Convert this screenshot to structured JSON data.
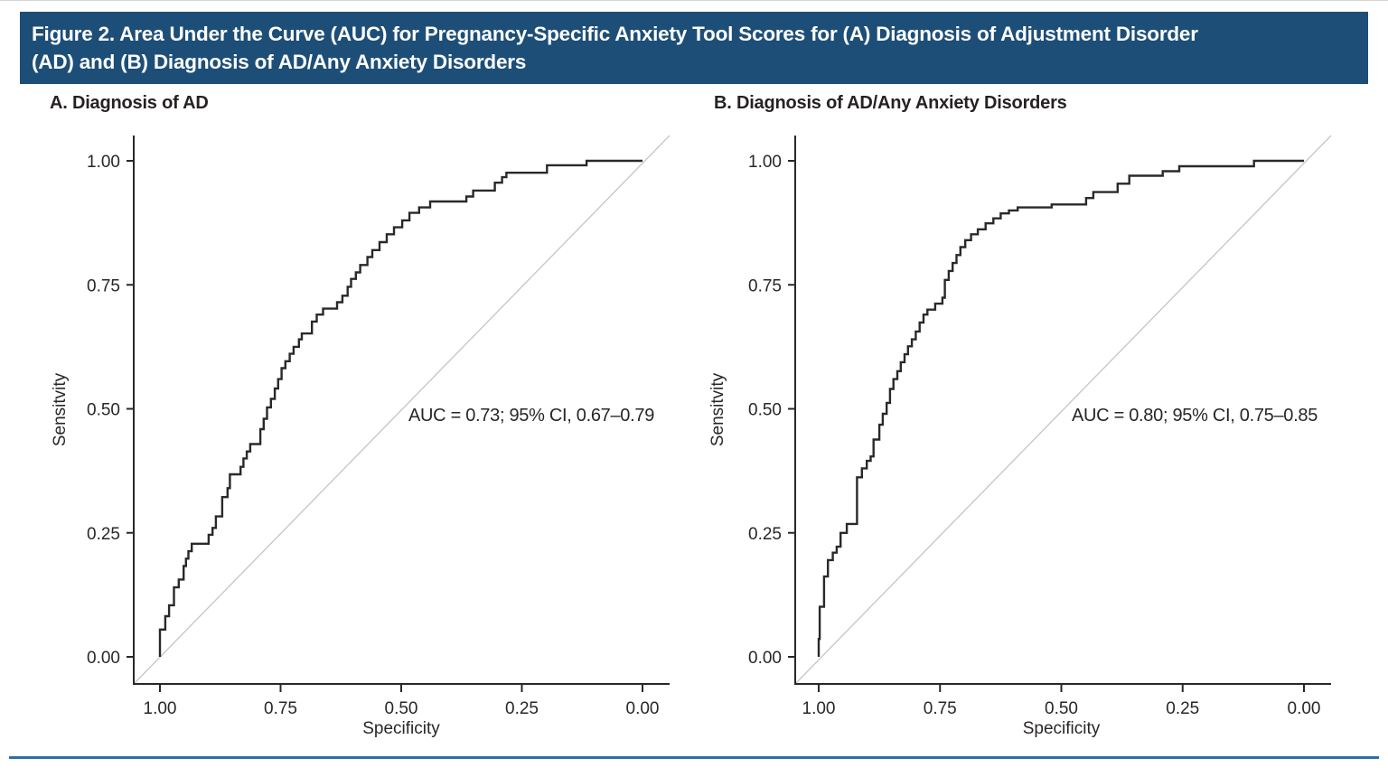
{
  "header": {
    "lines": [
      "Figure 2. Area Under the Curve (AUC) for Pregnancy-Specific Anxiety Tool Scores for (A) Diagnosis of Adjustment Disorder",
      "(AD) and (B) Diagnosis of AD/Any Anxiety Disorders"
    ],
    "full_title": "Figure 2. Area Under the Curve (AUC) for Pregnancy-Specific Anxiety Tool Scores for (A) Diagnosis of Adjustment Disorder (AD) and (B) Diagnosis of AD/Any Anxiety Disorders"
  },
  "palette": {
    "header_bg": "#1d4e77",
    "header_text": "#ffffff",
    "curve": "#2b2829",
    "axis": "#2b2728",
    "tick_text": "#2a2627",
    "reference_line": "#c8c8cc",
    "bottom_rule": "#2e6ea6"
  },
  "chart_data": [
    {
      "id": "panel-a",
      "type": "line",
      "subtype": "roc_step_curve",
      "title": "A. Diagnosis of AD",
      "xlabel": "Specificity",
      "ylabel": "Sensitvity",
      "x_axis_reversed": true,
      "xlim": [
        1.0,
        0.0
      ],
      "ylim": [
        0.0,
        1.0
      ],
      "x_tick_labels": [
        "1.00",
        "0.75",
        "0.50",
        "0.25",
        "0.00"
      ],
      "y_tick_labels": [
        "0.00",
        "0.25",
        "0.50",
        "0.75",
        "1.00"
      ],
      "grid": false,
      "legend": "none",
      "reference_line": "diagonal chance line",
      "annotation": "AUC = 0.73; 95% CI, 0.67–0.79",
      "auc": 0.73,
      "ci_low": 0.67,
      "ci_high": 0.79,
      "roc_points": [
        [
          1.0,
          0.0
        ],
        [
          1.0,
          0.055
        ],
        [
          0.989,
          0.055
        ],
        [
          0.989,
          0.082
        ],
        [
          0.981,
          0.082
        ],
        [
          0.981,
          0.104
        ],
        [
          0.971,
          0.104
        ],
        [
          0.971,
          0.14
        ],
        [
          0.961,
          0.14
        ],
        [
          0.961,
          0.156
        ],
        [
          0.951,
          0.156
        ],
        [
          0.951,
          0.183
        ],
        [
          0.946,
          0.183
        ],
        [
          0.946,
          0.198
        ],
        [
          0.941,
          0.198
        ],
        [
          0.941,
          0.213
        ],
        [
          0.934,
          0.213
        ],
        [
          0.934,
          0.228
        ],
        [
          0.899,
          0.228
        ],
        [
          0.899,
          0.246
        ],
        [
          0.891,
          0.246
        ],
        [
          0.891,
          0.26
        ],
        [
          0.884,
          0.26
        ],
        [
          0.884,
          0.283
        ],
        [
          0.871,
          0.283
        ],
        [
          0.871,
          0.322
        ],
        [
          0.86,
          0.322
        ],
        [
          0.86,
          0.34
        ],
        [
          0.855,
          0.34
        ],
        [
          0.855,
          0.368
        ],
        [
          0.833,
          0.368
        ],
        [
          0.833,
          0.383
        ],
        [
          0.827,
          0.383
        ],
        [
          0.827,
          0.4
        ],
        [
          0.82,
          0.4
        ],
        [
          0.82,
          0.414
        ],
        [
          0.813,
          0.414
        ],
        [
          0.813,
          0.429
        ],
        [
          0.792,
          0.429
        ],
        [
          0.792,
          0.459
        ],
        [
          0.785,
          0.459
        ],
        [
          0.785,
          0.48
        ],
        [
          0.778,
          0.48
        ],
        [
          0.778,
          0.503
        ],
        [
          0.77,
          0.503
        ],
        [
          0.77,
          0.52
        ],
        [
          0.762,
          0.52
        ],
        [
          0.762,
          0.541
        ],
        [
          0.755,
          0.541
        ],
        [
          0.755,
          0.56
        ],
        [
          0.748,
          0.56
        ],
        [
          0.748,
          0.582
        ],
        [
          0.74,
          0.582
        ],
        [
          0.74,
          0.596
        ],
        [
          0.731,
          0.596
        ],
        [
          0.731,
          0.611
        ],
        [
          0.723,
          0.611
        ],
        [
          0.723,
          0.625
        ],
        [
          0.712,
          0.625
        ],
        [
          0.712,
          0.64
        ],
        [
          0.706,
          0.64
        ],
        [
          0.706,
          0.652
        ],
        [
          0.685,
          0.652
        ],
        [
          0.685,
          0.676
        ],
        [
          0.675,
          0.676
        ],
        [
          0.675,
          0.69
        ],
        [
          0.662,
          0.69
        ],
        [
          0.662,
          0.702
        ],
        [
          0.633,
          0.702
        ],
        [
          0.633,
          0.715
        ],
        [
          0.622,
          0.715
        ],
        [
          0.622,
          0.728
        ],
        [
          0.611,
          0.728
        ],
        [
          0.611,
          0.746
        ],
        [
          0.604,
          0.746
        ],
        [
          0.604,
          0.762
        ],
        [
          0.594,
          0.762
        ],
        [
          0.594,
          0.775
        ],
        [
          0.585,
          0.775
        ],
        [
          0.585,
          0.79
        ],
        [
          0.57,
          0.79
        ],
        [
          0.57,
          0.806
        ],
        [
          0.56,
          0.806
        ],
        [
          0.56,
          0.82
        ],
        [
          0.545,
          0.82
        ],
        [
          0.545,
          0.836
        ],
        [
          0.53,
          0.836
        ],
        [
          0.53,
          0.852
        ],
        [
          0.515,
          0.852
        ],
        [
          0.515,
          0.866
        ],
        [
          0.498,
          0.866
        ],
        [
          0.498,
          0.88
        ],
        [
          0.483,
          0.88
        ],
        [
          0.483,
          0.895
        ],
        [
          0.463,
          0.895
        ],
        [
          0.463,
          0.906
        ],
        [
          0.44,
          0.906
        ],
        [
          0.44,
          0.918
        ],
        [
          0.365,
          0.918
        ],
        [
          0.365,
          0.928
        ],
        [
          0.351,
          0.928
        ],
        [
          0.351,
          0.94
        ],
        [
          0.306,
          0.94
        ],
        [
          0.306,
          0.956
        ],
        [
          0.291,
          0.956
        ],
        [
          0.291,
          0.967
        ],
        [
          0.282,
          0.967
        ],
        [
          0.282,
          0.976
        ],
        [
          0.198,
          0.976
        ],
        [
          0.198,
          0.991
        ],
        [
          0.116,
          0.991
        ],
        [
          0.116,
          1.0
        ],
        [
          0.0,
          1.0
        ]
      ]
    },
    {
      "id": "panel-b",
      "type": "line",
      "subtype": "roc_step_curve",
      "title": "B. Diagnosis of AD/Any Anxiety Disorders",
      "xlabel": "Specificity",
      "ylabel": "Sensitvity",
      "x_axis_reversed": true,
      "xlim": [
        1.0,
        0.0
      ],
      "ylim": [
        0.0,
        1.0
      ],
      "x_tick_labels": [
        "1.00",
        "0.75",
        "0.50",
        "0.25",
        "0.00"
      ],
      "y_tick_labels": [
        "0.00",
        "0.25",
        "0.50",
        "0.75",
        "1.00"
      ],
      "grid": false,
      "legend": "none",
      "reference_line": "diagonal chance line",
      "annotation": "AUC = 0.80; 95% CI, 0.75–0.85",
      "auc": 0.8,
      "ci_low": 0.75,
      "ci_high": 0.85,
      "roc_points": [
        [
          1.0,
          0.0
        ],
        [
          1.0,
          0.036
        ],
        [
          0.998,
          0.036
        ],
        [
          0.998,
          0.101
        ],
        [
          0.989,
          0.101
        ],
        [
          0.989,
          0.162
        ],
        [
          0.981,
          0.162
        ],
        [
          0.981,
          0.195
        ],
        [
          0.971,
          0.195
        ],
        [
          0.971,
          0.21
        ],
        [
          0.963,
          0.21
        ],
        [
          0.963,
          0.222
        ],
        [
          0.955,
          0.222
        ],
        [
          0.955,
          0.25
        ],
        [
          0.942,
          0.25
        ],
        [
          0.942,
          0.268
        ],
        [
          0.921,
          0.268
        ],
        [
          0.921,
          0.362
        ],
        [
          0.911,
          0.362
        ],
        [
          0.911,
          0.38
        ],
        [
          0.901,
          0.38
        ],
        [
          0.901,
          0.395
        ],
        [
          0.893,
          0.395
        ],
        [
          0.893,
          0.404
        ],
        [
          0.887,
          0.404
        ],
        [
          0.887,
          0.438
        ],
        [
          0.875,
          0.438
        ],
        [
          0.875,
          0.468
        ],
        [
          0.868,
          0.468
        ],
        [
          0.868,
          0.49
        ],
        [
          0.86,
          0.49
        ],
        [
          0.86,
          0.512
        ],
        [
          0.853,
          0.512
        ],
        [
          0.853,
          0.54
        ],
        [
          0.846,
          0.54
        ],
        [
          0.846,
          0.56
        ],
        [
          0.838,
          0.56
        ],
        [
          0.838,
          0.576
        ],
        [
          0.831,
          0.576
        ],
        [
          0.831,
          0.594
        ],
        [
          0.823,
          0.594
        ],
        [
          0.823,
          0.61
        ],
        [
          0.816,
          0.61
        ],
        [
          0.816,
          0.626
        ],
        [
          0.808,
          0.626
        ],
        [
          0.808,
          0.64
        ],
        [
          0.8,
          0.64
        ],
        [
          0.8,
          0.656
        ],
        [
          0.792,
          0.656
        ],
        [
          0.792,
          0.674
        ],
        [
          0.784,
          0.674
        ],
        [
          0.784,
          0.69
        ],
        [
          0.776,
          0.69
        ],
        [
          0.776,
          0.7
        ],
        [
          0.76,
          0.7
        ],
        [
          0.76,
          0.712
        ],
        [
          0.745,
          0.712
        ],
        [
          0.745,
          0.724
        ],
        [
          0.74,
          0.724
        ],
        [
          0.74,
          0.76
        ],
        [
          0.732,
          0.76
        ],
        [
          0.732,
          0.778
        ],
        [
          0.724,
          0.778
        ],
        [
          0.724,
          0.794
        ],
        [
          0.716,
          0.794
        ],
        [
          0.716,
          0.81
        ],
        [
          0.708,
          0.81
        ],
        [
          0.708,
          0.826
        ],
        [
          0.698,
          0.826
        ],
        [
          0.698,
          0.84
        ],
        [
          0.686,
          0.84
        ],
        [
          0.686,
          0.852
        ],
        [
          0.672,
          0.852
        ],
        [
          0.672,
          0.862
        ],
        [
          0.656,
          0.862
        ],
        [
          0.656,
          0.874
        ],
        [
          0.64,
          0.874
        ],
        [
          0.64,
          0.884
        ],
        [
          0.625,
          0.884
        ],
        [
          0.625,
          0.894
        ],
        [
          0.608,
          0.894
        ],
        [
          0.608,
          0.9
        ],
        [
          0.59,
          0.9
        ],
        [
          0.59,
          0.906
        ],
        [
          0.52,
          0.906
        ],
        [
          0.52,
          0.912
        ],
        [
          0.449,
          0.912
        ],
        [
          0.449,
          0.925
        ],
        [
          0.434,
          0.925
        ],
        [
          0.434,
          0.937
        ],
        [
          0.384,
          0.937
        ],
        [
          0.384,
          0.954
        ],
        [
          0.36,
          0.954
        ],
        [
          0.36,
          0.97
        ],
        [
          0.291,
          0.97
        ],
        [
          0.291,
          0.979
        ],
        [
          0.257,
          0.979
        ],
        [
          0.257,
          0.989
        ],
        [
          0.103,
          0.989
        ],
        [
          0.103,
          1.0
        ],
        [
          0.0,
          1.0
        ]
      ]
    }
  ]
}
